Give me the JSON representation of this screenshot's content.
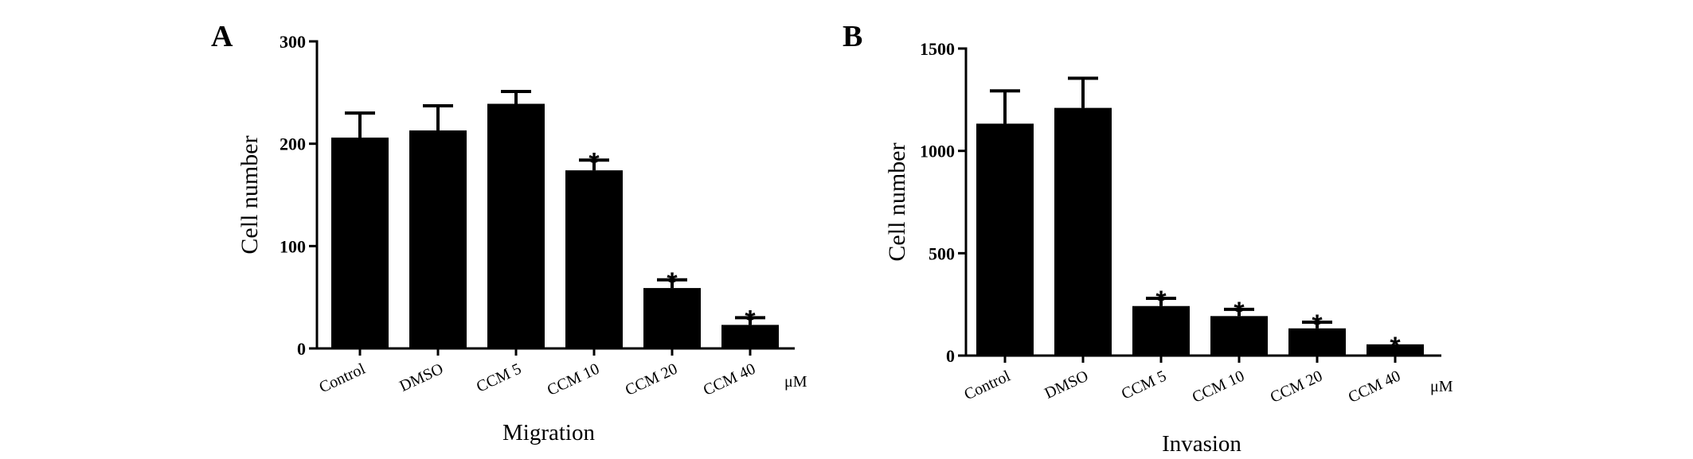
{
  "chart_data": [
    {
      "type": "bar",
      "panel_label": "A",
      "xlabel": "Migration",
      "ylabel": "Cell number",
      "unit": "μM",
      "categories": [
        "Control",
        "DMSO",
        "CCM 5",
        "CCM 10",
        "CCM 20",
        "CCM 40"
      ],
      "values": [
        206,
        213,
        239,
        174,
        59,
        23
      ],
      "errors": [
        24,
        24,
        12,
        10,
        8,
        7
      ],
      "significant": [
        false,
        false,
        false,
        true,
        true,
        true
      ],
      "significance_marker": "*",
      "ylim": [
        0,
        300
      ],
      "yticks": [
        0,
        100,
        200,
        300
      ],
      "bar_color": "#000000"
    },
    {
      "type": "bar",
      "panel_label": "B",
      "xlabel": "Invasion",
      "ylabel": "Cell number",
      "unit": "μM",
      "categories": [
        "Control",
        "DMSO",
        "CCM 5",
        "CCM 10",
        "CCM 20",
        "CCM 40"
      ],
      "values": [
        1133,
        1210,
        242,
        193,
        133,
        55
      ],
      "errors": [
        160,
        145,
        38,
        33,
        30,
        0
      ],
      "significant": [
        false,
        false,
        true,
        true,
        true,
        true
      ],
      "significance_marker": "*",
      "ylim": [
        0,
        1500
      ],
      "yticks": [
        0,
        500,
        1000,
        1500
      ],
      "bar_color": "#000000"
    }
  ]
}
